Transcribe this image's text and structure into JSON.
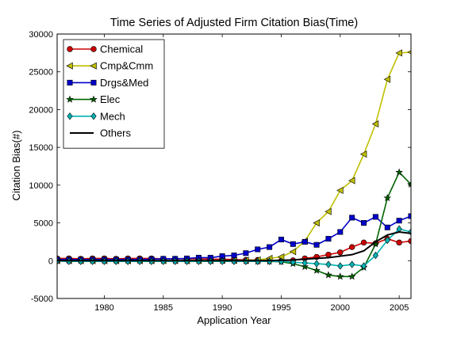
{
  "chart_data": {
    "type": "line",
    "title": "Time Series of Adjusted Firm Citation Bias(Time)",
    "xlabel": "Application Year",
    "ylabel": "Citation Bias(#)",
    "xlim": [
      1976,
      2006
    ],
    "ylim": [
      -5000,
      30000
    ],
    "xticks": [
      1980,
      1985,
      1990,
      1995,
      2000,
      2005
    ],
    "yticks": [
      -5000,
      0,
      5000,
      10000,
      15000,
      20000,
      25000,
      30000
    ],
    "grid": false,
    "legend_position": "top-left",
    "x": [
      1976,
      1977,
      1978,
      1979,
      1980,
      1981,
      1982,
      1983,
      1984,
      1985,
      1986,
      1987,
      1988,
      1989,
      1990,
      1991,
      1992,
      1993,
      1994,
      1995,
      1996,
      1997,
      1998,
      1999,
      2000,
      2001,
      2002,
      2003,
      2004,
      2005,
      2006
    ],
    "series": [
      {
        "name": "Chemical",
        "color": "#cc0000",
        "marker": "circle",
        "values": [
          300,
          300,
          250,
          300,
          300,
          250,
          300,
          300,
          300,
          250,
          250,
          250,
          250,
          200,
          200,
          150,
          100,
          100,
          0,
          0,
          50,
          300,
          500,
          800,
          1100,
          1800,
          2400,
          2300,
          2900,
          2400,
          2600
        ]
      },
      {
        "name": "Cmp&Cmm",
        "color": "#bfbf00",
        "marker": "triangle-left",
        "values": [
          0,
          0,
          0,
          0,
          0,
          0,
          0,
          0,
          0,
          0,
          0,
          0,
          0,
          0,
          50,
          50,
          50,
          100,
          300,
          500,
          1200,
          2600,
          5000,
          6500,
          9300,
          10600,
          14100,
          18100,
          24000,
          27500,
          27600
        ]
      },
      {
        "name": "Drgs&Med",
        "color": "#0000cc",
        "marker": "square",
        "values": [
          150,
          150,
          150,
          150,
          150,
          150,
          150,
          150,
          200,
          250,
          250,
          300,
          400,
          400,
          600,
          700,
          1000,
          1500,
          1800,
          2800,
          2200,
          2500,
          2100,
          2900,
          3800,
          5700,
          5000,
          5800,
          4400,
          5300,
          5900
        ]
      },
      {
        "name": "Elec",
        "color": "#006400",
        "marker": "star",
        "values": [
          0,
          0,
          0,
          0,
          0,
          0,
          0,
          0,
          0,
          0,
          0,
          0,
          0,
          0,
          0,
          0,
          -50,
          -100,
          -100,
          -150,
          -400,
          -800,
          -1300,
          -1900,
          -2100,
          -2100,
          -900,
          2200,
          8300,
          11700,
          10100
        ]
      },
      {
        "name": "Mech",
        "color": "#00b3b3",
        "marker": "diamond",
        "values": [
          -50,
          -100,
          -100,
          -100,
          -100,
          -100,
          -100,
          -100,
          -100,
          -100,
          -100,
          -100,
          -100,
          -100,
          -100,
          -100,
          -100,
          -100,
          -100,
          -100,
          -200,
          -300,
          -400,
          -500,
          -700,
          -500,
          -700,
          700,
          2700,
          4200,
          3800
        ]
      },
      {
        "name": "Others",
        "color": "#000000",
        "marker": "none",
        "values": [
          0,
          0,
          0,
          0,
          0,
          0,
          0,
          0,
          0,
          0,
          0,
          0,
          0,
          0,
          0,
          0,
          0,
          0,
          0,
          50,
          100,
          200,
          300,
          400,
          600,
          800,
          1300,
          2500,
          3400,
          3800,
          3600
        ]
      }
    ]
  }
}
